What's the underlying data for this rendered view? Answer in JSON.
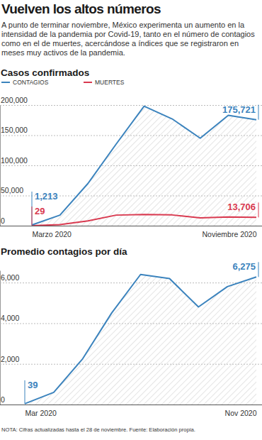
{
  "title": "Vuelven los altos números",
  "subtitle": "A punto de terminar noviembre, México experimenta un aumento en la intensidad de la pandemia por Covid-19, tanto en el número de contagios como en el de muertes, acercándose a índices que se registraron en meses muy activos de la pandemia.",
  "note": "NOTA: Cifras actualizadas hasta el 28 de noviembre. Fuente: Elaboración propia.",
  "chart_data": [
    {
      "type": "line",
      "title": "Casos confirmados",
      "categories": [
        "Marzo 2020",
        null,
        null,
        null,
        null,
        null,
        null,
        null,
        "Noviembre 2020"
      ],
      "series": [
        {
          "name": "CONTAGIOS",
          "color": "#3b83bd",
          "values": [
            1213,
            17500,
            70000,
            135000,
            198000,
            177000,
            145000,
            183000,
            175721
          ],
          "value_labels": [
            "1,213",
            null,
            null,
            null,
            null,
            null,
            null,
            null,
            "175,721"
          ]
        },
        {
          "name": "MUERTES",
          "color": "#d93a50",
          "values": [
            29,
            1900,
            8000,
            17500,
            18500,
            17800,
            13000,
            14500,
            13706
          ],
          "value_labels": [
            "29",
            null,
            null,
            null,
            null,
            null,
            null,
            null,
            "13,706"
          ]
        }
      ],
      "ylim": [
        0,
        200000
      ],
      "yticks": [
        0,
        {
          "value": 50000,
          "label": "50,000"
        },
        {
          "value": 100000,
          "label": "100,000"
        },
        {
          "value": 150000,
          "label": "150,000"
        },
        {
          "value": 200000,
          "label": "200,000"
        }
      ],
      "grid": true,
      "legend": "top-left",
      "data_labels": true
    },
    {
      "type": "line",
      "title": "Promedio contagios por día",
      "categories": [
        "Mar 2020",
        null,
        null,
        null,
        null,
        null,
        null,
        null,
        "Nov 2020"
      ],
      "color": "#3b83bd",
      "values": [
        39,
        600,
        2250,
        4500,
        6400,
        6200,
        4800,
        5800,
        6275
      ],
      "value_labels": [
        "39",
        null,
        null,
        null,
        null,
        null,
        null,
        null,
        "6,275"
      ],
      "ylim": [
        0,
        6600
      ],
      "yticks": [
        0,
        {
          "value": 2000,
          "label": "2,000"
        },
        {
          "value": 4000,
          "label": "4,000"
        },
        {
          "value": 6000,
          "label": "6,000"
        }
      ],
      "grid": true,
      "data_labels": true
    }
  ]
}
